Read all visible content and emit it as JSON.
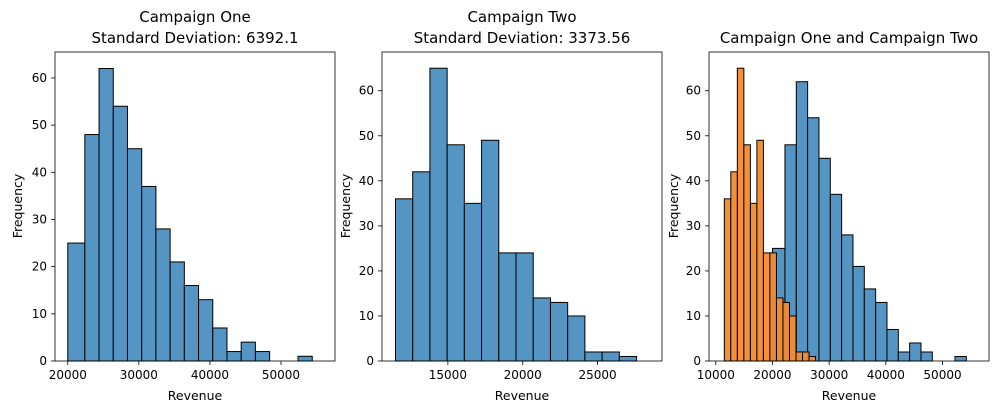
{
  "colors": {
    "blue": "#4c8fc0",
    "orange": "#f28b30",
    "edge": "#000000"
  },
  "chart_data": [
    {
      "type": "histogram",
      "title_lines": [
        "Campaign One",
        "Standard Deviation: 6392.1"
      ],
      "xlabel": "Revenue",
      "ylabel": "Frequency",
      "xlim": [
        18200,
        57600
      ],
      "ylim": [
        0,
        65.5
      ],
      "xticks": [
        20000,
        30000,
        40000,
        50000
      ],
      "yticks": [
        0,
        10,
        20,
        30,
        40,
        50,
        60
      ],
      "series": [
        {
          "color": "blue",
          "bins": [
            [
              20000,
              22400,
              25
            ],
            [
              22400,
              24400,
              48
            ],
            [
              24400,
              26400,
              62
            ],
            [
              26400,
              28400,
              54
            ],
            [
              28400,
              30400,
              45
            ],
            [
              30400,
              32400,
              37
            ],
            [
              32400,
              34400,
              28
            ],
            [
              34400,
              36400,
              21
            ],
            [
              36400,
              38400,
              16
            ],
            [
              38400,
              40400,
              13
            ],
            [
              40400,
              42400,
              7
            ],
            [
              42400,
              44400,
              2
            ],
            [
              44400,
              46400,
              4
            ],
            [
              46400,
              48400,
              2
            ],
            [
              48400,
              50400,
              0
            ],
            [
              50400,
              52400,
              0
            ],
            [
              52400,
              54400,
              1
            ]
          ]
        }
      ]
    },
    {
      "type": "histogram",
      "title_lines": [
        "Campaign Two",
        "Standard Deviation: 3373.56"
      ],
      "xlabel": "Revenue",
      "ylabel": "Frequency",
      "xlim": [
        10600,
        29300
      ],
      "ylim": [
        0,
        68.6
      ],
      "xticks": [
        15000,
        20000,
        25000
      ],
      "yticks": [
        0,
        10,
        20,
        30,
        40,
        50,
        60
      ],
      "series": [
        {
          "color": "blue",
          "bins": [
            [
              11500,
              12650,
              36
            ],
            [
              12650,
              13800,
              42
            ],
            [
              13800,
              14950,
              65
            ],
            [
              14950,
              16100,
              48
            ],
            [
              16100,
              17250,
              35
            ],
            [
              17250,
              18400,
              49
            ],
            [
              18400,
              19550,
              24
            ],
            [
              19550,
              20700,
              24
            ],
            [
              20700,
              21850,
              14
            ],
            [
              21850,
              23000,
              13
            ],
            [
              23000,
              24150,
              10
            ],
            [
              24150,
              25300,
              2
            ],
            [
              25300,
              26450,
              2
            ],
            [
              26450,
              27600,
              1
            ]
          ]
        }
      ]
    },
    {
      "type": "histogram",
      "title_lines": [
        "Campaign One and Campaign Two"
      ],
      "xlabel": "Revenue",
      "ylabel": "Frequency",
      "xlim": [
        8800,
        58200
      ],
      "ylim": [
        0,
        68.6
      ],
      "xticks": [
        10000,
        20000,
        30000,
        40000,
        50000
      ],
      "yticks": [
        0,
        10,
        20,
        30,
        40,
        50,
        60
      ],
      "series": [
        {
          "color": "blue",
          "bins": [
            [
              20000,
              22200,
              25
            ],
            [
              22200,
              24200,
              48
            ],
            [
              24200,
              26200,
              62
            ],
            [
              26200,
              28200,
              54
            ],
            [
              28200,
              30200,
              45
            ],
            [
              30200,
              32200,
              37
            ],
            [
              32200,
              34200,
              28
            ],
            [
              34200,
              36200,
              21
            ],
            [
              36200,
              38200,
              16
            ],
            [
              38200,
              40200,
              13
            ],
            [
              40200,
              42200,
              7
            ],
            [
              42200,
              44200,
              2
            ],
            [
              44200,
              46200,
              4
            ],
            [
              46200,
              48200,
              2
            ],
            [
              48200,
              50200,
              0
            ],
            [
              50200,
              52200,
              0
            ],
            [
              52200,
              54200,
              1
            ]
          ]
        },
        {
          "color": "orange",
          "bins": [
            [
              11500,
              12650,
              36
            ],
            [
              12650,
              13800,
              42
            ],
            [
              13800,
              14950,
              65
            ],
            [
              14950,
              16100,
              48
            ],
            [
              16100,
              17250,
              35
            ],
            [
              17250,
              18400,
              49
            ],
            [
              18400,
              19550,
              24
            ],
            [
              19550,
              20700,
              24
            ],
            [
              20700,
              21850,
              14
            ],
            [
              21850,
              23000,
              13
            ],
            [
              23000,
              24150,
              10
            ],
            [
              24150,
              25300,
              2
            ],
            [
              25300,
              26450,
              2
            ],
            [
              26450,
              27600,
              1
            ]
          ]
        }
      ]
    }
  ]
}
